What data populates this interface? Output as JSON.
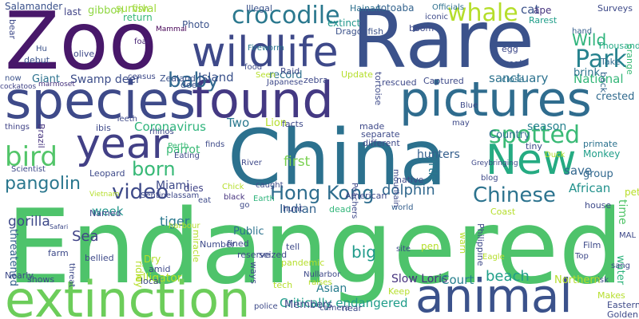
{
  "words": [
    {
      "text": "Endangered",
      "color": "#4ec36b"
    },
    {
      "text": "Rare",
      "color": "#3b528b"
    },
    {
      "text": "China",
      "color": "#2c718e"
    },
    {
      "text": "Zoo",
      "color": "#48186a"
    },
    {
      "text": "species",
      "color": "#3e4a89"
    },
    {
      "text": "found",
      "color": "#443983"
    },
    {
      "text": "pictures",
      "color": "#2f6c8e"
    },
    {
      "text": "extinction",
      "color": "#6ccd5a"
    },
    {
      "text": "animal",
      "color": "#3b528b"
    },
    {
      "text": "wildlife",
      "color": "#3e4989"
    },
    {
      "text": "year",
      "color": "#424086"
    },
    {
      "text": "New",
      "color": "#25ab82"
    },
    {
      "text": "crocodile",
      "color": "#2a788e"
    },
    {
      "text": "whale",
      "color": "#b5de2b"
    },
    {
      "text": "spotted",
      "color": "#3aba76"
    },
    {
      "text": "Hong Kong",
      "color": "#2e6d8e"
    },
    {
      "text": "Chinese",
      "color": "#2c738e"
    },
    {
      "text": "video",
      "color": "#3e4a89"
    },
    {
      "text": "bird",
      "color": "#52c569"
    },
    {
      "text": "pangolin",
      "color": "#2a778e"
    },
    {
      "text": "born",
      "color": "#38b977"
    },
    {
      "text": "Park",
      "color": "#26828e"
    },
    {
      "text": "Wild",
      "color": "#2fb47c"
    },
    {
      "text": "baby",
      "color": "#31688e"
    },
    {
      "text": "National",
      "color": "#35b779"
    },
    {
      "text": "Critically endangered",
      "color": "#1e9c89"
    },
    {
      "text": "Slow Loris",
      "color": "#46337e"
    },
    {
      "text": "beach",
      "color": "#1f9e89"
    },
    {
      "text": "dolphin",
      "color": "#31688e"
    },
    {
      "text": "big",
      "color": "#1f9a8a"
    },
    {
      "text": "African",
      "color": "#21918c"
    },
    {
      "text": "tiger",
      "color": "#2a788e"
    },
    {
      "text": "Island",
      "color": "#3b528b"
    },
    {
      "text": "Swamp deer",
      "color": "#3d4e8a"
    },
    {
      "text": "Giant",
      "color": "#2c728e"
    },
    {
      "text": "Indian",
      "color": "#33638d"
    },
    {
      "text": "record",
      "color": "#2d708e"
    },
    {
      "text": "Asian",
      "color": "#287d8e"
    },
    {
      "text": "week",
      "color": "#1f988b"
    },
    {
      "text": "first",
      "color": "#7ad151"
    },
    {
      "text": "Lion",
      "color": "#b5de2b"
    },
    {
      "text": "Two",
      "color": "#2a788e"
    },
    {
      "text": "sanctuary",
      "color": "#2c728e"
    },
    {
      "text": "crested",
      "color": "#306a8e"
    },
    {
      "text": "brink",
      "color": "#2c728e"
    },
    {
      "text": "Coronavirus",
      "color": "#2fb47c"
    },
    {
      "text": "parrot",
      "color": "#3aba76"
    },
    {
      "text": "Sea",
      "color": "#414487"
    },
    {
      "text": "threatened",
      "color": "#355f8d"
    },
    {
      "text": "alligator",
      "color": "#b5de2b"
    },
    {
      "text": "Court",
      "color": "#27808e"
    },
    {
      "text": "season",
      "color": "#26828e"
    },
    {
      "text": "turtle",
      "color": "#2a788e"
    },
    {
      "text": "Country",
      "color": "#2e6e8e"
    },
    {
      "text": "save",
      "color": "#31678e"
    },
    {
      "text": "group",
      "color": "#31688e"
    },
    {
      "text": "time",
      "color": "#52c569"
    },
    {
      "text": "water",
      "color": "#2fb47c"
    },
    {
      "text": "gorilla",
      "color": "#3e4989"
    },
    {
      "text": "pet",
      "color": "#b8de29"
    },
    {
      "text": "Monkey",
      "color": "#1f9e89"
    },
    {
      "text": "primate",
      "color": "#2c728e"
    },
    {
      "text": "Miami",
      "color": "#3e4a89"
    },
    {
      "text": "Public",
      "color": "#2c738e"
    },
    {
      "text": "hunters",
      "color": "#355f8d"
    },
    {
      "text": "dies",
      "color": "#414487"
    },
    {
      "text": "last",
      "color": "#414487"
    },
    {
      "text": "gibbon",
      "color": "#90d743"
    },
    {
      "text": "survival",
      "color": "#9fda3a"
    },
    {
      "text": "return",
      "color": "#35b779"
    },
    {
      "text": "fish",
      "color": "#9fda3a"
    },
    {
      "text": "Salamander",
      "color": "#3b528b"
    },
    {
      "text": "Illegal",
      "color": "#3b528b"
    },
    {
      "text": "extinct",
      "color": "#1f958b"
    },
    {
      "text": "Hainan",
      "color": "#2d708e"
    },
    {
      "text": "totoaba",
      "color": "#33638d"
    },
    {
      "text": "Officials",
      "color": "#2d708e"
    },
    {
      "text": "iconic",
      "color": "#3e4a89"
    },
    {
      "text": "cat",
      "color": "#3b528b"
    },
    {
      "text": "ape",
      "color": "#46337e"
    },
    {
      "text": "Rarest",
      "color": "#1f9e89"
    },
    {
      "text": "Surveys",
      "color": "#3e4a89"
    },
    {
      "text": "Thousands",
      "color": "#22a884"
    },
    {
      "text": "hand",
      "color": "#355f8d"
    },
    {
      "text": "egg",
      "color": "#3e4989"
    },
    {
      "text": "seal",
      "color": "#3b528b"
    },
    {
      "text": "close",
      "color": "#2c728e"
    },
    {
      "text": "Take",
      "color": "#306a8e"
    },
    {
      "text": "orange",
      "color": "#3aba76"
    },
    {
      "text": "back",
      "color": "#32658e"
    },
    {
      "text": "boom",
      "color": "#3e4a89"
    },
    {
      "text": "Dragonfish",
      "color": "#3b528b"
    },
    {
      "text": "Photo",
      "color": "#3b528b"
    },
    {
      "text": "Mammal",
      "color": "#440154"
    },
    {
      "text": "Fireworm",
      "color": "#2a778e"
    },
    {
      "text": "foal",
      "color": "#482475"
    },
    {
      "text": "Zealand",
      "color": "#3b528b"
    },
    {
      "text": "deer",
      "color": "#3b528b"
    },
    {
      "text": "census",
      "color": "#3e4a89"
    },
    {
      "text": "Hu",
      "color": "#3b528b"
    },
    {
      "text": "olive",
      "color": "#3e4989"
    },
    {
      "text": "debut",
      "color": "#3b528b"
    },
    {
      "text": "now",
      "color": "#3b528b"
    },
    {
      "text": "cockatoos",
      "color": "#414487"
    },
    {
      "text": "marmoset",
      "color": "#46337e"
    },
    {
      "text": "bear",
      "color": "#3e4a89"
    },
    {
      "text": "things",
      "color": "#414487"
    },
    {
      "text": "ibis",
      "color": "#3e4989"
    },
    {
      "text": "Teeth",
      "color": "#3e4989"
    },
    {
      "text": "Brazil",
      "color": "#46337e"
    },
    {
      "text": "Scientist",
      "color": "#3e4a89"
    },
    {
      "text": "Leopard",
      "color": "#3e4a89"
    },
    {
      "text": "rhinos",
      "color": "#3e4989"
    },
    {
      "text": "Perth",
      "color": "#3aba76"
    },
    {
      "text": "Eating",
      "color": "#3e4a89"
    },
    {
      "text": "Vietnam",
      "color": "#b5de2b"
    },
    {
      "text": "Safari",
      "color": "#3e4a89"
    },
    {
      "text": "Named",
      "color": "#3e4989"
    },
    {
      "text": "Sentinelassam",
      "color": "#3e4989"
    },
    {
      "text": "black",
      "color": "#46337e"
    },
    {
      "text": "Earth",
      "color": "#2fb47c"
    },
    {
      "text": "go",
      "color": "#3e4a89"
    },
    {
      "text": "hunt",
      "color": "#3e4a89"
    },
    {
      "text": "dead",
      "color": "#32b67a"
    },
    {
      "text": "American",
      "color": "#3e4a89"
    },
    {
      "text": "world",
      "color": "#355f8d"
    },
    {
      "text": "native",
      "color": "#3e4a89"
    },
    {
      "text": "Coast",
      "color": "#b5de2b"
    },
    {
      "text": "house",
      "color": "#3e4a89"
    },
    {
      "text": "blog",
      "color": "#3e4a89"
    },
    {
      "text": "Greybringing",
      "color": "#3e4989"
    },
    {
      "text": "tiny",
      "color": "#3e4989"
    },
    {
      "text": "Duck",
      "color": "#b5de2b"
    },
    {
      "text": "Chick",
      "color": "#b5de2b"
    },
    {
      "text": "Poachers",
      "color": "#3e4989"
    },
    {
      "text": "mountain",
      "color": "#3e4a89"
    },
    {
      "text": "River",
      "color": "#3e4989"
    },
    {
      "text": "finds",
      "color": "#3e4a89"
    },
    {
      "text": "may",
      "color": "#3e4a89"
    },
    {
      "text": "Blue",
      "color": "#3e4a89"
    },
    {
      "text": "made",
      "color": "#3e4989"
    },
    {
      "text": "facts",
      "color": "#3e4989"
    },
    {
      "text": "separate",
      "color": "#3e4a89"
    },
    {
      "text": "different",
      "color": "#3e4a89"
    },
    {
      "text": "tortoise",
      "color": "#3e4a89"
    },
    {
      "text": "rescued",
      "color": "#3e4989"
    },
    {
      "text": "Captured",
      "color": "#3e4a89"
    },
    {
      "text": "zebra",
      "color": "#3e4989"
    },
    {
      "text": "Japanese",
      "color": "#3e4989"
    },
    {
      "text": "Seen",
      "color": "#b5de2b"
    },
    {
      "text": "Update",
      "color": "#b5de2b"
    },
    {
      "text": "Raid",
      "color": "#3e4a89"
    },
    {
      "text": "food",
      "color": "#3e4a89"
    },
    {
      "text": "warn",
      "color": "#b5de2b"
    },
    {
      "text": "Philippine",
      "color": "#3e4989"
    },
    {
      "text": "Eagle",
      "color": "#b5de2b"
    },
    {
      "text": "pen",
      "color": "#b5de2b"
    },
    {
      "text": "site",
      "color": "#3e4a89"
    },
    {
      "text": "Film",
      "color": "#3e4a89"
    },
    {
      "text": "MAL",
      "color": "#3e4989"
    },
    {
      "text": "Top",
      "color": "#3e4989"
    },
    {
      "text": "sang",
      "color": "#3e4a89"
    },
    {
      "text": "risk",
      "color": "#3e4a89"
    },
    {
      "text": "Northern",
      "color": "#b5de2b"
    },
    {
      "text": "Makes",
      "color": "#b5de2b"
    },
    {
      "text": "Eastern",
      "color": "#3e4a89"
    },
    {
      "text": "Golden",
      "color": "#3e4a89"
    },
    {
      "text": "eat",
      "color": "#3e4a89"
    },
    {
      "text": "harbour",
      "color": "#b5de2b"
    },
    {
      "text": "caught",
      "color": "#3e4a89"
    },
    {
      "text": "miracle",
      "color": "#b5de2b"
    },
    {
      "text": "Number",
      "color": "#3e4a89"
    },
    {
      "text": "fined",
      "color": "#3e4a89"
    },
    {
      "text": "tell",
      "color": "#3e4a89"
    },
    {
      "text": "ways",
      "color": "#3e4a89"
    },
    {
      "text": "pandemic",
      "color": "#b5de2b"
    },
    {
      "text": "seized",
      "color": "#3e4a89"
    },
    {
      "text": "reserve",
      "color": "#3e4989"
    },
    {
      "text": "Nullarbor",
      "color": "#3e4a89"
    },
    {
      "text": "raises",
      "color": "#b5de2b"
    },
    {
      "text": "tech",
      "color": "#b5de2b"
    },
    {
      "text": "Members",
      "color": "#3e4989"
    },
    {
      "text": "camera",
      "color": "#3e4a89"
    },
    {
      "text": "near",
      "color": "#3e4a89"
    },
    {
      "text": "Keep",
      "color": "#b5de2b"
    },
    {
      "text": "police",
      "color": "#3e4a89"
    },
    {
      "text": "Dry",
      "color": "#b5de2b"
    },
    {
      "text": "amid",
      "color": "#3e4a89"
    },
    {
      "text": "bellied",
      "color": "#3e4989"
    },
    {
      "text": "ridley",
      "color": "#b5de2b"
    },
    {
      "text": "local",
      "color": "#3e4a89"
    },
    {
      "text": "Nearly",
      "color": "#3e4a89"
    },
    {
      "text": "shows",
      "color": "#3e4a89"
    },
    {
      "text": "farm",
      "color": "#3e4a89"
    },
    {
      "text": "threat",
      "color": "#3e4a89"
    },
    {
      "text": "death",
      "color": "#3e4989"
    },
    {
      "text": "lie",
      "color": "#3e4a89"
    },
    {
      "text": "white",
      "color": "#3e4a89"
    }
  ]
}
